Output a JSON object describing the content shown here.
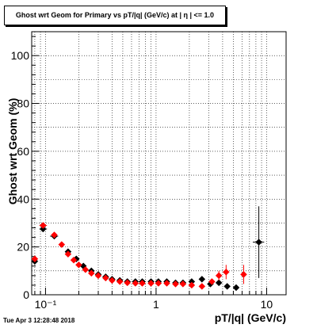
{
  "chart_data": {
    "type": "scatter",
    "title": "Ghost wrt Geom for Primary vs pT/|q| (GeV/c) at | η | <= 1.0",
    "xlabel": "pT/|q| (GeV/c)",
    "ylabel": "Ghost wrt Geom (%)",
    "xscale": "log",
    "xlim": [
      0.075,
      15
    ],
    "ylim": [
      0,
      110
    ],
    "grid": true,
    "x_tick_labels": [
      {
        "value": 0.1,
        "label": "10⁻¹"
      },
      {
        "value": 1,
        "label": "1"
      },
      {
        "value": 10,
        "label": "10"
      }
    ],
    "y_tick_labels": [
      {
        "value": 0,
        "label": "0"
      },
      {
        "value": 20,
        "label": "20"
      },
      {
        "value": 40,
        "label": "40"
      },
      {
        "value": 60,
        "label": "60"
      },
      {
        "value": 80,
        "label": "80"
      },
      {
        "value": 100,
        "label": "100"
      }
    ],
    "series": [
      {
        "color": "#000000",
        "marker": "diamond",
        "points": [
          {
            "x": 0.08,
            "y": 14,
            "xerr": [
              0.078,
              0.082
            ],
            "yerr": 1
          },
          {
            "x": 0.095,
            "y": 27.5,
            "xerr": [
              0.088,
              0.103
            ],
            "yerr": 1
          },
          {
            "x": 0.12,
            "y": 24.5,
            "xerr": [
              0.11,
              0.13
            ],
            "yerr": 1
          },
          {
            "x": 0.16,
            "y": 18,
            "xerr": [
              0.15,
              0.17
            ],
            "yerr": 0.5
          },
          {
            "x": 0.19,
            "y": 15,
            "yerr": 0.4
          },
          {
            "x": 0.22,
            "y": 12,
            "yerr": 0.3
          },
          {
            "x": 0.26,
            "y": 10,
            "yerr": 0.3
          },
          {
            "x": 0.3,
            "y": 8.5,
            "yerr": 0.3
          },
          {
            "x": 0.35,
            "y": 7.5,
            "yerr": 0.3
          },
          {
            "x": 0.4,
            "y": 6.5,
            "yerr": 0.3
          },
          {
            "x": 0.47,
            "y": 6,
            "yerr": 0.3
          },
          {
            "x": 0.55,
            "y": 5.5,
            "yerr": 0.3
          },
          {
            "x": 0.65,
            "y": 5.5,
            "yerr": 0.3
          },
          {
            "x": 0.75,
            "y": 5.5,
            "yerr": 0.3
          },
          {
            "x": 0.9,
            "y": 5.5,
            "yerr": 0.3
          },
          {
            "x": 1.05,
            "y": 5.5,
            "yerr": 0.3
          },
          {
            "x": 1.25,
            "y": 5.5,
            "yerr": 0.4
          },
          {
            "x": 1.5,
            "y": 5,
            "yerr": 0.4
          },
          {
            "x": 1.75,
            "y": 5,
            "yerr": 0.5
          },
          {
            "x": 2.1,
            "y": 5.5,
            "yerr": 0.6
          },
          {
            "x": 2.6,
            "y": 6.5,
            "yerr": 0.8
          },
          {
            "x": 3.1,
            "y": 4.5,
            "yerr": 0.8
          },
          {
            "x": 3.7,
            "y": 5,
            "yerr": 1
          },
          {
            "x": 4.4,
            "y": 3.5,
            "yerr": 1
          },
          {
            "x": 5.3,
            "y": 3,
            "yerr": 1.2
          },
          {
            "x": 8.5,
            "y": 22,
            "xerr": [
              7.5,
              9.5
            ],
            "yerr": 15
          }
        ]
      },
      {
        "color": "#ff0000",
        "marker": "diamond",
        "points": [
          {
            "x": 0.08,
            "y": 15,
            "yerr": 1
          },
          {
            "x": 0.095,
            "y": 29,
            "xerr": [
              0.088,
              0.103
            ],
            "yerr": 1
          },
          {
            "x": 0.12,
            "y": 25,
            "yerr": 1
          },
          {
            "x": 0.14,
            "y": 21,
            "yerr": 0.5
          },
          {
            "x": 0.16,
            "y": 17,
            "yerr": 0.5
          },
          {
            "x": 0.18,
            "y": 14.5,
            "yerr": 0.4
          },
          {
            "x": 0.2,
            "y": 12.5,
            "yerr": 0.4
          },
          {
            "x": 0.23,
            "y": 10.5,
            "yerr": 0.3
          },
          {
            "x": 0.26,
            "y": 9,
            "yerr": 0.3
          },
          {
            "x": 0.3,
            "y": 8,
            "yerr": 0.3
          },
          {
            "x": 0.35,
            "y": 7,
            "yerr": 0.3
          },
          {
            "x": 0.4,
            "y": 6,
            "yerr": 0.3
          },
          {
            "x": 0.47,
            "y": 5.5,
            "yerr": 0.3
          },
          {
            "x": 0.55,
            "y": 5,
            "yerr": 0.3
          },
          {
            "x": 0.65,
            "y": 4.8,
            "yerr": 0.3
          },
          {
            "x": 0.75,
            "y": 4.8,
            "yerr": 0.3
          },
          {
            "x": 0.9,
            "y": 4.8,
            "yerr": 0.3
          },
          {
            "x": 1.05,
            "y": 4.8,
            "yerr": 0.3
          },
          {
            "x": 1.25,
            "y": 4.8,
            "yerr": 0.4
          },
          {
            "x": 1.5,
            "y": 4.5,
            "yerr": 0.5
          },
          {
            "x": 1.75,
            "y": 4.5,
            "yerr": 0.6
          },
          {
            "x": 2.1,
            "y": 4,
            "yerr": 0.7
          },
          {
            "x": 2.6,
            "y": 3.5,
            "yerr": 0.8
          },
          {
            "x": 3.2,
            "y": 5.5,
            "yerr": 1
          },
          {
            "x": 3.7,
            "y": 8,
            "yerr": 2
          },
          {
            "x": 4.3,
            "y": 9.5,
            "yerr": 3
          },
          {
            "x": 6.2,
            "y": 8.5,
            "yerr": 4
          }
        ]
      }
    ]
  },
  "timestamp": "Tue Apr  3 12:28:48 2018"
}
